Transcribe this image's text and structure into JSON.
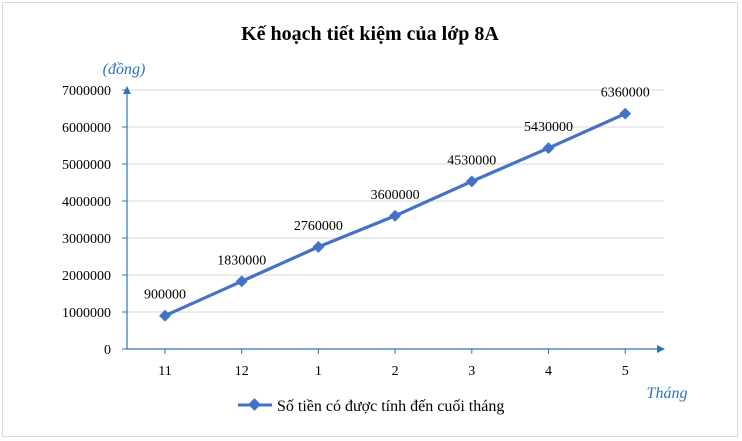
{
  "chart_data": {
    "type": "line",
    "title": "Kế hoạch tiết kiệm của lớp 8A",
    "xlabel": "Tháng",
    "ylabel": "(đồng)",
    "categories": [
      "11",
      "12",
      "1",
      "2",
      "3",
      "4",
      "5"
    ],
    "series": [
      {
        "name": "Số tiền có được tính đến cuối tháng",
        "values": [
          900000,
          1830000,
          2760000,
          3600000,
          4530000,
          5430000,
          6360000
        ],
        "color": "#4472c4"
      }
    ],
    "data_labels": [
      "900000",
      "1830000",
      "2760000",
      "3600000",
      "4530000",
      "5430000",
      "6360000"
    ],
    "y_ticks": [
      "0",
      "1000000",
      "2000000",
      "3000000",
      "4000000",
      "5000000",
      "6000000",
      "7000000"
    ],
    "ylim": [
      0,
      7000000
    ],
    "grid": true,
    "legend": "bottom",
    "axis_color": "#2e75b6",
    "grid_color": "#d9d9d9"
  }
}
